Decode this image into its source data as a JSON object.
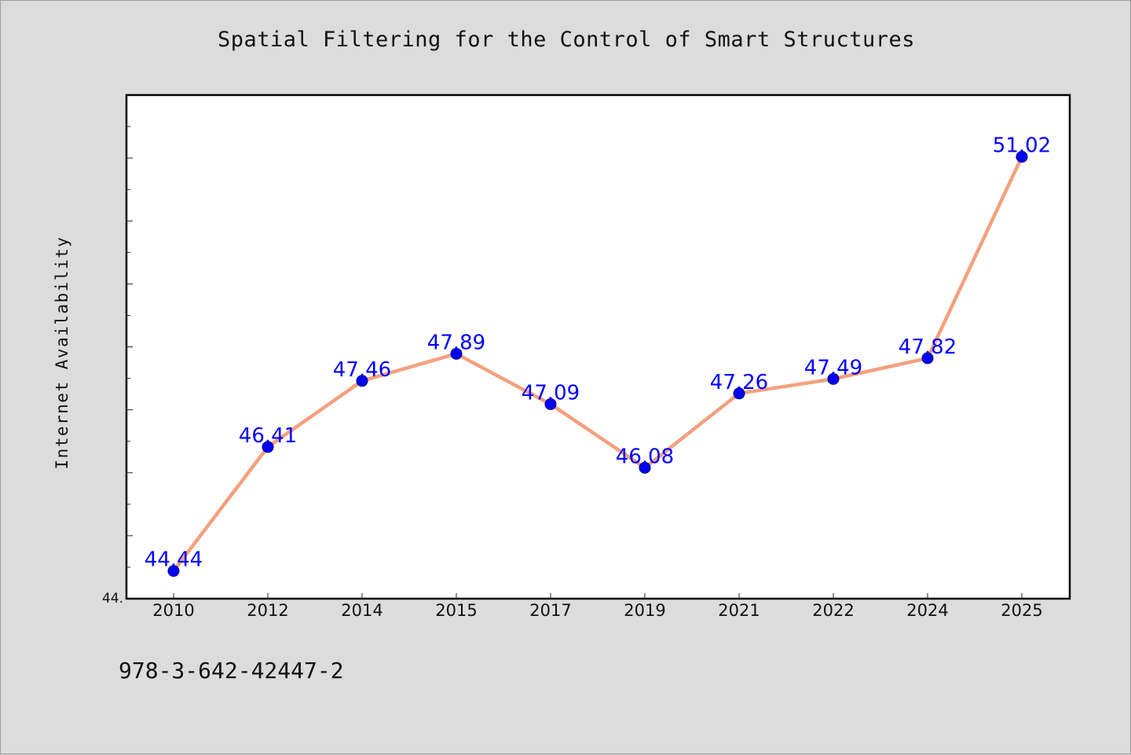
{
  "colors": {
    "background": "#dcdcdc",
    "plot_background": "#ffffff",
    "line": "#f4a07e",
    "marker": "#0000ee",
    "data_label": "#0000ff"
  },
  "footer_text": "978-3-642-42447-2",
  "chart_data": {
    "type": "line",
    "title": "Spatial Filtering for the Control of Smart Structures",
    "xlabel": "",
    "ylabel": "Internet Availability",
    "categories": [
      "2010",
      "2012",
      "2014",
      "2015",
      "2017",
      "2019",
      "2021",
      "2022",
      "2024",
      "2025"
    ],
    "series": [
      {
        "values": [
          44.44,
          46.41,
          47.46,
          47.89,
          47.09,
          46.08,
          47.26,
          47.49,
          47.82,
          51.02
        ],
        "labels": [
          "44.44",
          "46.41",
          "47.46",
          "47.89",
          "47.09",
          "46.08",
          "47.26",
          "47.49",
          "47.82",
          "51.02"
        ]
      }
    ],
    "ylim": [
      44.0,
      52.0
    ],
    "yticks_labeled": [
      {
        "value": 44.0,
        "label": "44."
      }
    ],
    "y_minor_step": 0.5,
    "grid": false,
    "legend": "none"
  }
}
